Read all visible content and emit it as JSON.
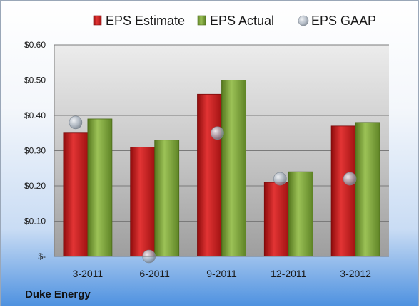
{
  "company": "Duke Energy",
  "chart_data": {
    "type": "bar",
    "categories": [
      "3-2011",
      "6-2011",
      "9-2011",
      "12-2011",
      "3-2012"
    ],
    "series": [
      {
        "name": "EPS Estimate",
        "type": "bar",
        "color": "#c81a1a",
        "values": [
          0.35,
          0.31,
          0.46,
          0.21,
          0.37
        ]
      },
      {
        "name": "EPS Actual",
        "type": "bar",
        "color": "#7aa03a",
        "values": [
          0.39,
          0.33,
          0.5,
          0.24,
          0.38
        ]
      },
      {
        "name": "EPS GAAP",
        "type": "scatter",
        "color": "#a9b3bf",
        "values": [
          0.38,
          0.0,
          0.35,
          0.22,
          0.22
        ]
      }
    ],
    "y_ticks": [
      {
        "value": 0.6,
        "label": "$0.60"
      },
      {
        "value": 0.5,
        "label": "$0.50"
      },
      {
        "value": 0.4,
        "label": "$0.40"
      },
      {
        "value": 0.3,
        "label": "$0.30"
      },
      {
        "value": 0.2,
        "label": "$0.20"
      },
      {
        "value": 0.1,
        "label": "$0.10"
      },
      {
        "value": 0.0,
        "label": "$-"
      }
    ],
    "ylim": [
      0,
      0.6
    ],
    "grid": true,
    "legend_position": "top"
  }
}
